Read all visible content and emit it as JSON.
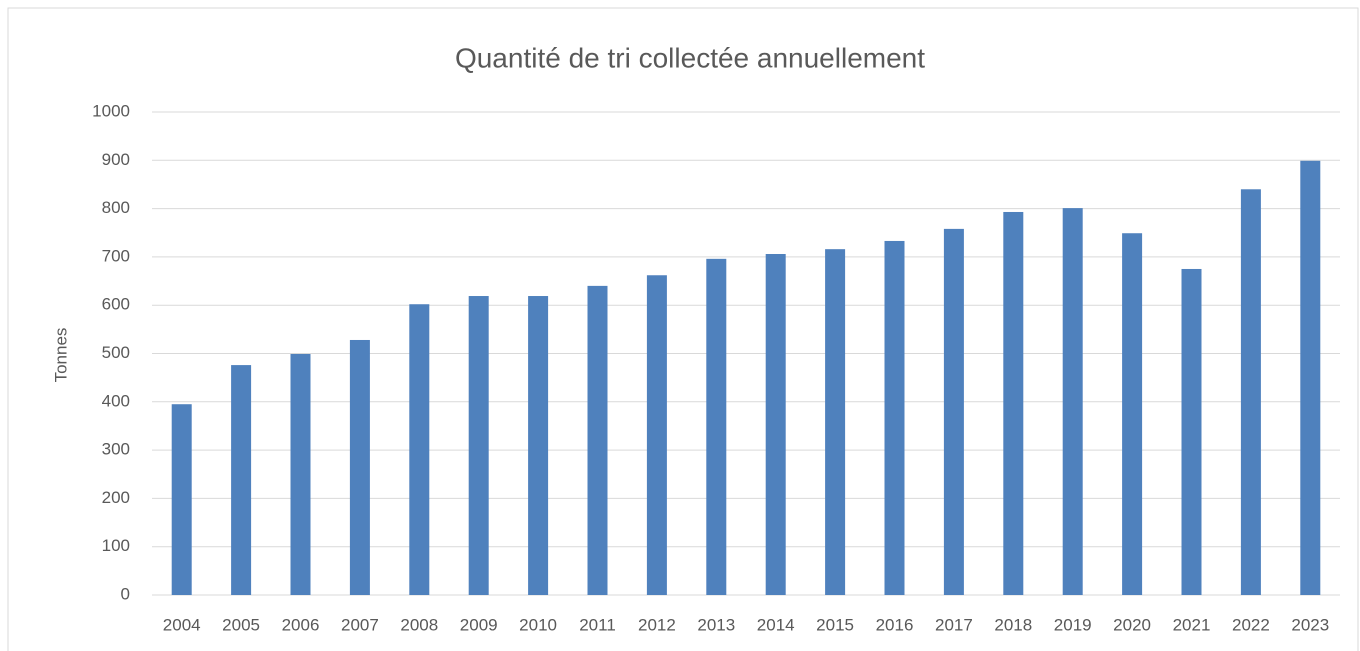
{
  "chart_data": {
    "type": "bar",
    "title": "Quantité de tri collectée annuellement",
    "y_label": "Tonnes",
    "categories": [
      "2004",
      "2005",
      "2006",
      "2007",
      "2008",
      "2009",
      "2010",
      "2011",
      "2012",
      "2013",
      "2014",
      "2015",
      "2016",
      "2017",
      "2018",
      "2019",
      "2020",
      "2021",
      "2022",
      "2023"
    ],
    "values": [
      395,
      476,
      499,
      528,
      602,
      619,
      619,
      640,
      662,
      696,
      706,
      716,
      733,
      758,
      793,
      801,
      749,
      675,
      840,
      899
    ],
    "color": "#4f81bd",
    "ylim": [
      0,
      1000
    ],
    "yticks": [
      0,
      100,
      200,
      300,
      400,
      500,
      600,
      700,
      800,
      900,
      1000
    ],
    "grid": true
  }
}
